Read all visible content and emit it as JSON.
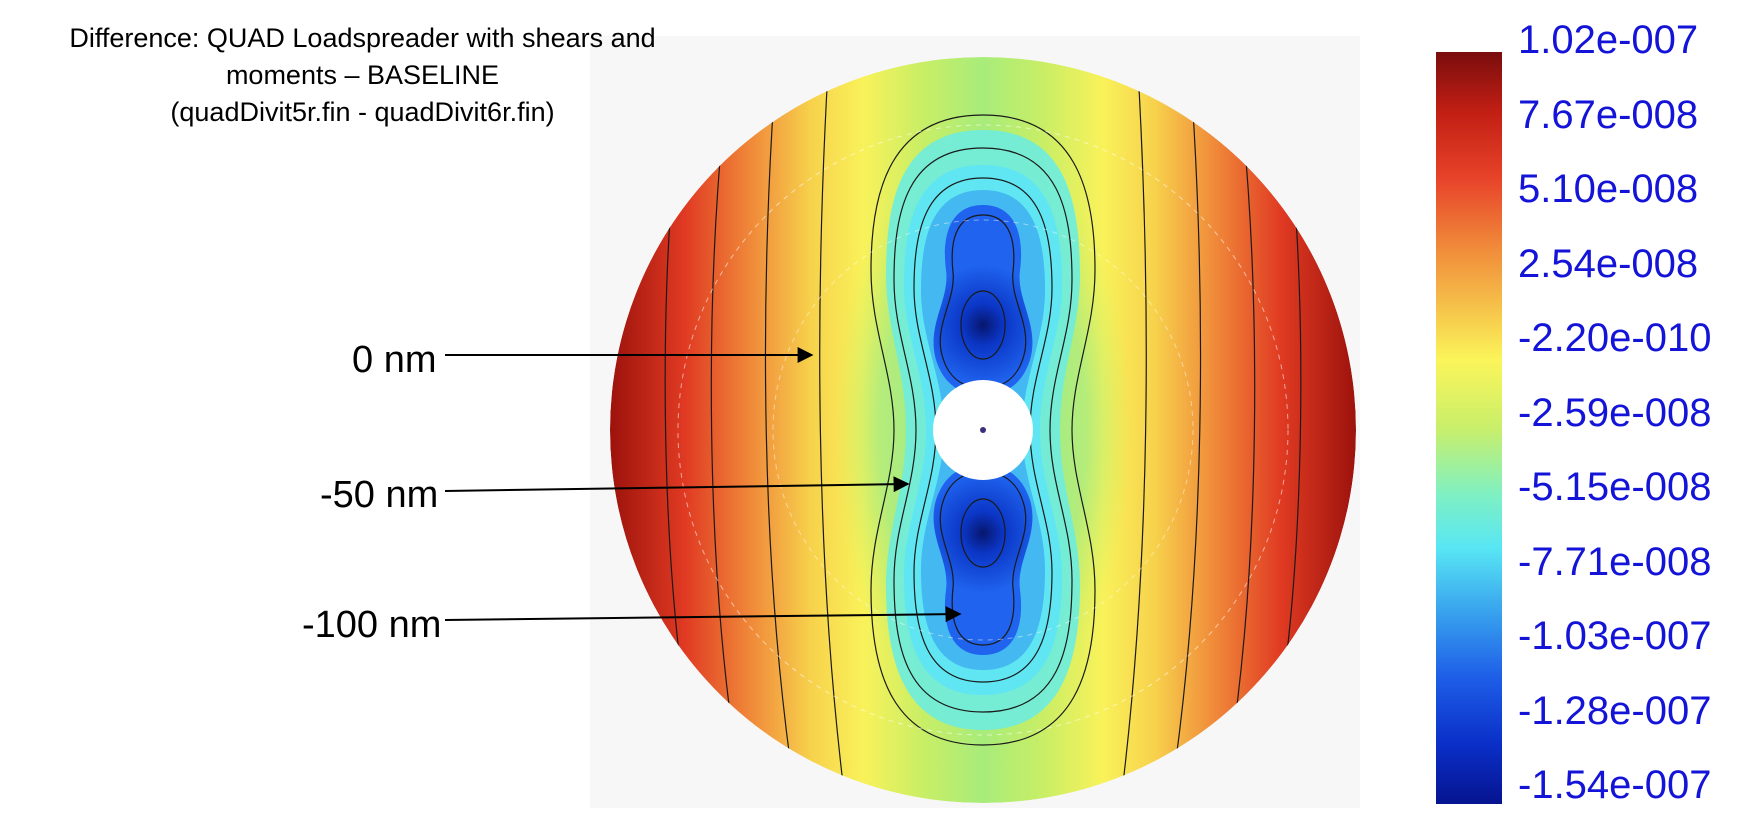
{
  "title": {
    "line1": "Difference:  QUAD Loadspreader with shears and",
    "line2": "moments – BASELINE",
    "line3": "(quadDivit5r.fin - quadDivit6r.fin)"
  },
  "callouts": [
    {
      "label": "0 nm"
    },
    {
      "label": "-50 nm"
    },
    {
      "label": "-100 nm"
    }
  ],
  "colorbar": {
    "labels": [
      "1.02e-007",
      "7.67e-008",
      "5.10e-008",
      "2.54e-008",
      "-2.20e-010",
      "-2.59e-008",
      "-5.15e-008",
      "-7.71e-008",
      "-1.03e-007",
      "-1.28e-007",
      "-1.54e-007"
    ],
    "colors": [
      "#7a0d0d",
      "#c21f14",
      "#e8442a",
      "#f08a3a",
      "#f6c24a",
      "#fbf55a",
      "#c9ef6a",
      "#7ef0c4",
      "#58e6f4",
      "#3aa6ee",
      "#1e5fe8",
      "#0a2fc8",
      "#061490"
    ],
    "label_color": "#1414d8"
  },
  "map_colors": {
    "dark_red": "#a5170f",
    "red": "#e84a26",
    "orange": "#f39a3c",
    "yellow": "#fbf158",
    "light_green": "#bfec68",
    "cyan": "#62e8ee",
    "blue": "#1f63ee",
    "dark_blue": "#081a7a",
    "contour": "#1a1a1a",
    "hole": "#ffffff"
  }
}
